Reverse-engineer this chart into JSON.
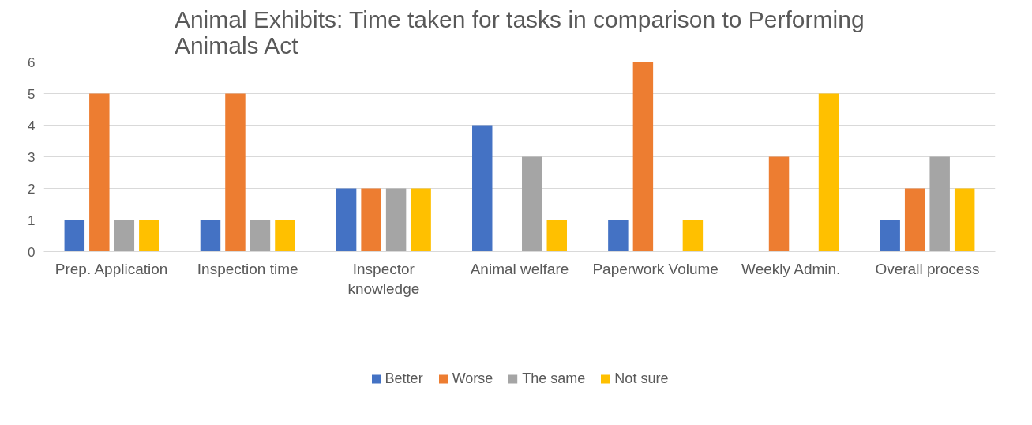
{
  "chart_data": {
    "type": "bar",
    "title": "Animal Exhibits: Time taken for tasks in comparison to Performing Animals Act",
    "categories": [
      "Prep. Application",
      "Inspection time",
      "Inspector knowledge",
      "Animal welfare",
      "Paperwork Volume",
      "Weekly Admin.",
      "Overall process"
    ],
    "series": [
      {
        "name": "Better",
        "color": "#4472c4",
        "values": [
          1,
          1,
          2,
          4,
          1,
          0,
          1
        ]
      },
      {
        "name": "Worse",
        "color": "#ed7d31",
        "values": [
          5,
          5,
          2,
          0,
          6,
          3,
          2
        ]
      },
      {
        "name": "The same",
        "color": "#a5a5a5",
        "values": [
          1,
          1,
          2,
          3,
          0,
          0,
          3
        ]
      },
      {
        "name": "Not sure",
        "color": "#ffc000",
        "values": [
          1,
          1,
          2,
          1,
          1,
          5,
          2
        ]
      }
    ],
    "ylim": [
      0,
      6
    ],
    "yticks": [
      0,
      1,
      2,
      3,
      4,
      5,
      6
    ],
    "grid": "y",
    "legend": "bottom"
  }
}
